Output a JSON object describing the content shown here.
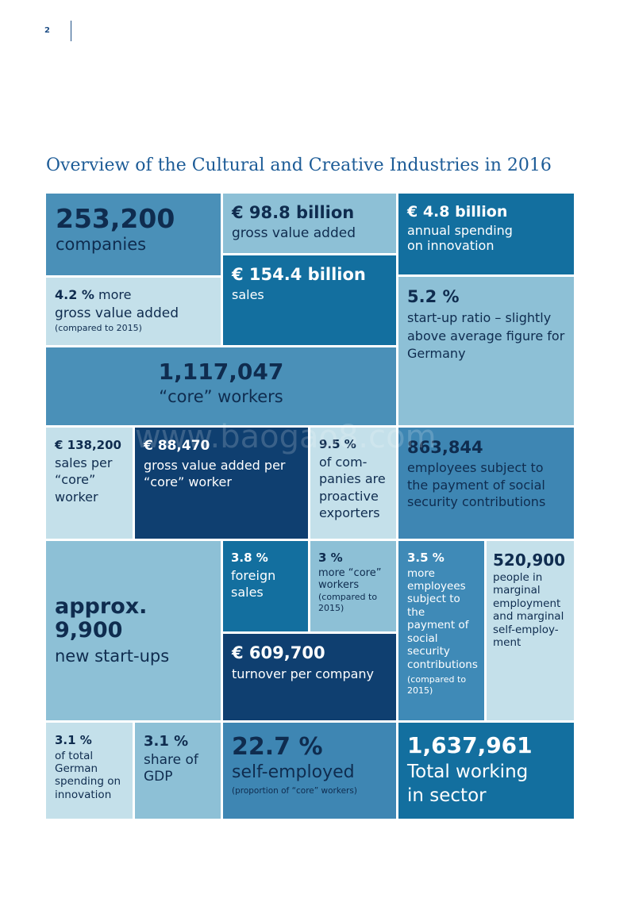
{
  "page": {
    "number": "2"
  },
  "title": "Overview of the Cultural and Creative Industries in 2016",
  "cells": {
    "companies": {
      "value": "253,200",
      "label": "companies"
    },
    "gva": {
      "value": "€ 98.8 billion",
      "label": "gross value added"
    },
    "innovation": {
      "value": "€ 4.8 billion",
      "label1": "annual spending",
      "label2": "on innovation"
    },
    "gva_growth": {
      "value": "4.2 %",
      "suffix": " more",
      "label": "gross value added",
      "note": "(compared to 2015)"
    },
    "sales": {
      "value": "€ 154.4 billion",
      "label": "sales"
    },
    "startup_ratio": {
      "value": "5.2 %",
      "line1": "start-up ratio – slightly",
      "line2": "above average figure for",
      "line3": "Germany"
    },
    "core_workers": {
      "value": "1,117,047",
      "label": "“core” workers"
    },
    "sales_per_worker": {
      "value": "€ 138,200",
      "line1": "sales per",
      "line2": "“core”",
      "line3": "worker"
    },
    "gva_per_worker": {
      "value": "€ 88,470",
      "line1": "gross value added per",
      "line2": "“core” worker"
    },
    "exporters": {
      "value": "9.5 %",
      "line1": "of com-",
      "line2": "panies are",
      "line3": "proactive",
      "line4": "exporters"
    },
    "employees": {
      "value": "863,844",
      "line1": "employees subject to",
      "line2": "the payment of social",
      "line3": "security contributions"
    },
    "startups": {
      "value": "approx. 9,900",
      "label": "new start-ups"
    },
    "foreign_sales": {
      "value": "3.8 %",
      "line1": "foreign",
      "line2": "sales"
    },
    "core_growth": {
      "value": "3 %",
      "line1": "more “core”",
      "line2": "workers",
      "note1": "(compared to",
      "note2": "2015)"
    },
    "employee_growth": {
      "value": "3.5 %",
      "line1": "more",
      "line2": "employees",
      "line3": "subject to the",
      "line4": "payment of",
      "line5": "social security",
      "line6": "contributions",
      "note1": "(compared to",
      "note2": "2015)"
    },
    "marginal": {
      "value": "520,900",
      "line1": "people in",
      "line2": "marginal",
      "line3": "employment",
      "line4": "and marginal",
      "line5": "self-employ-",
      "line6": "ment"
    },
    "turnover": {
      "value": "€ 609,700",
      "label": "turnover per company"
    },
    "innovation_share": {
      "value": "3.1 %",
      "line1": "of total",
      "line2": "German",
      "line3": "spending on",
      "line4": "innovation"
    },
    "gdp_share": {
      "value": "3.1 %",
      "line1": "share of",
      "line2": "GDP"
    },
    "self_employed": {
      "value": "22.7 %",
      "label": "self-employed",
      "note": "(proportion of “core” workers)"
    },
    "total_working": {
      "value": "1,637,961",
      "line1": "Total working",
      "line2": "in sector"
    }
  },
  "watermark": "www.baogao8.com",
  "colors": {
    "medium": "#4a90b8",
    "light": "#8dc0d6",
    "lightest": "#c4e0ea",
    "teal": "#136f9f",
    "navy": "#0f3f70",
    "dark_text": "#0f2c4f"
  }
}
